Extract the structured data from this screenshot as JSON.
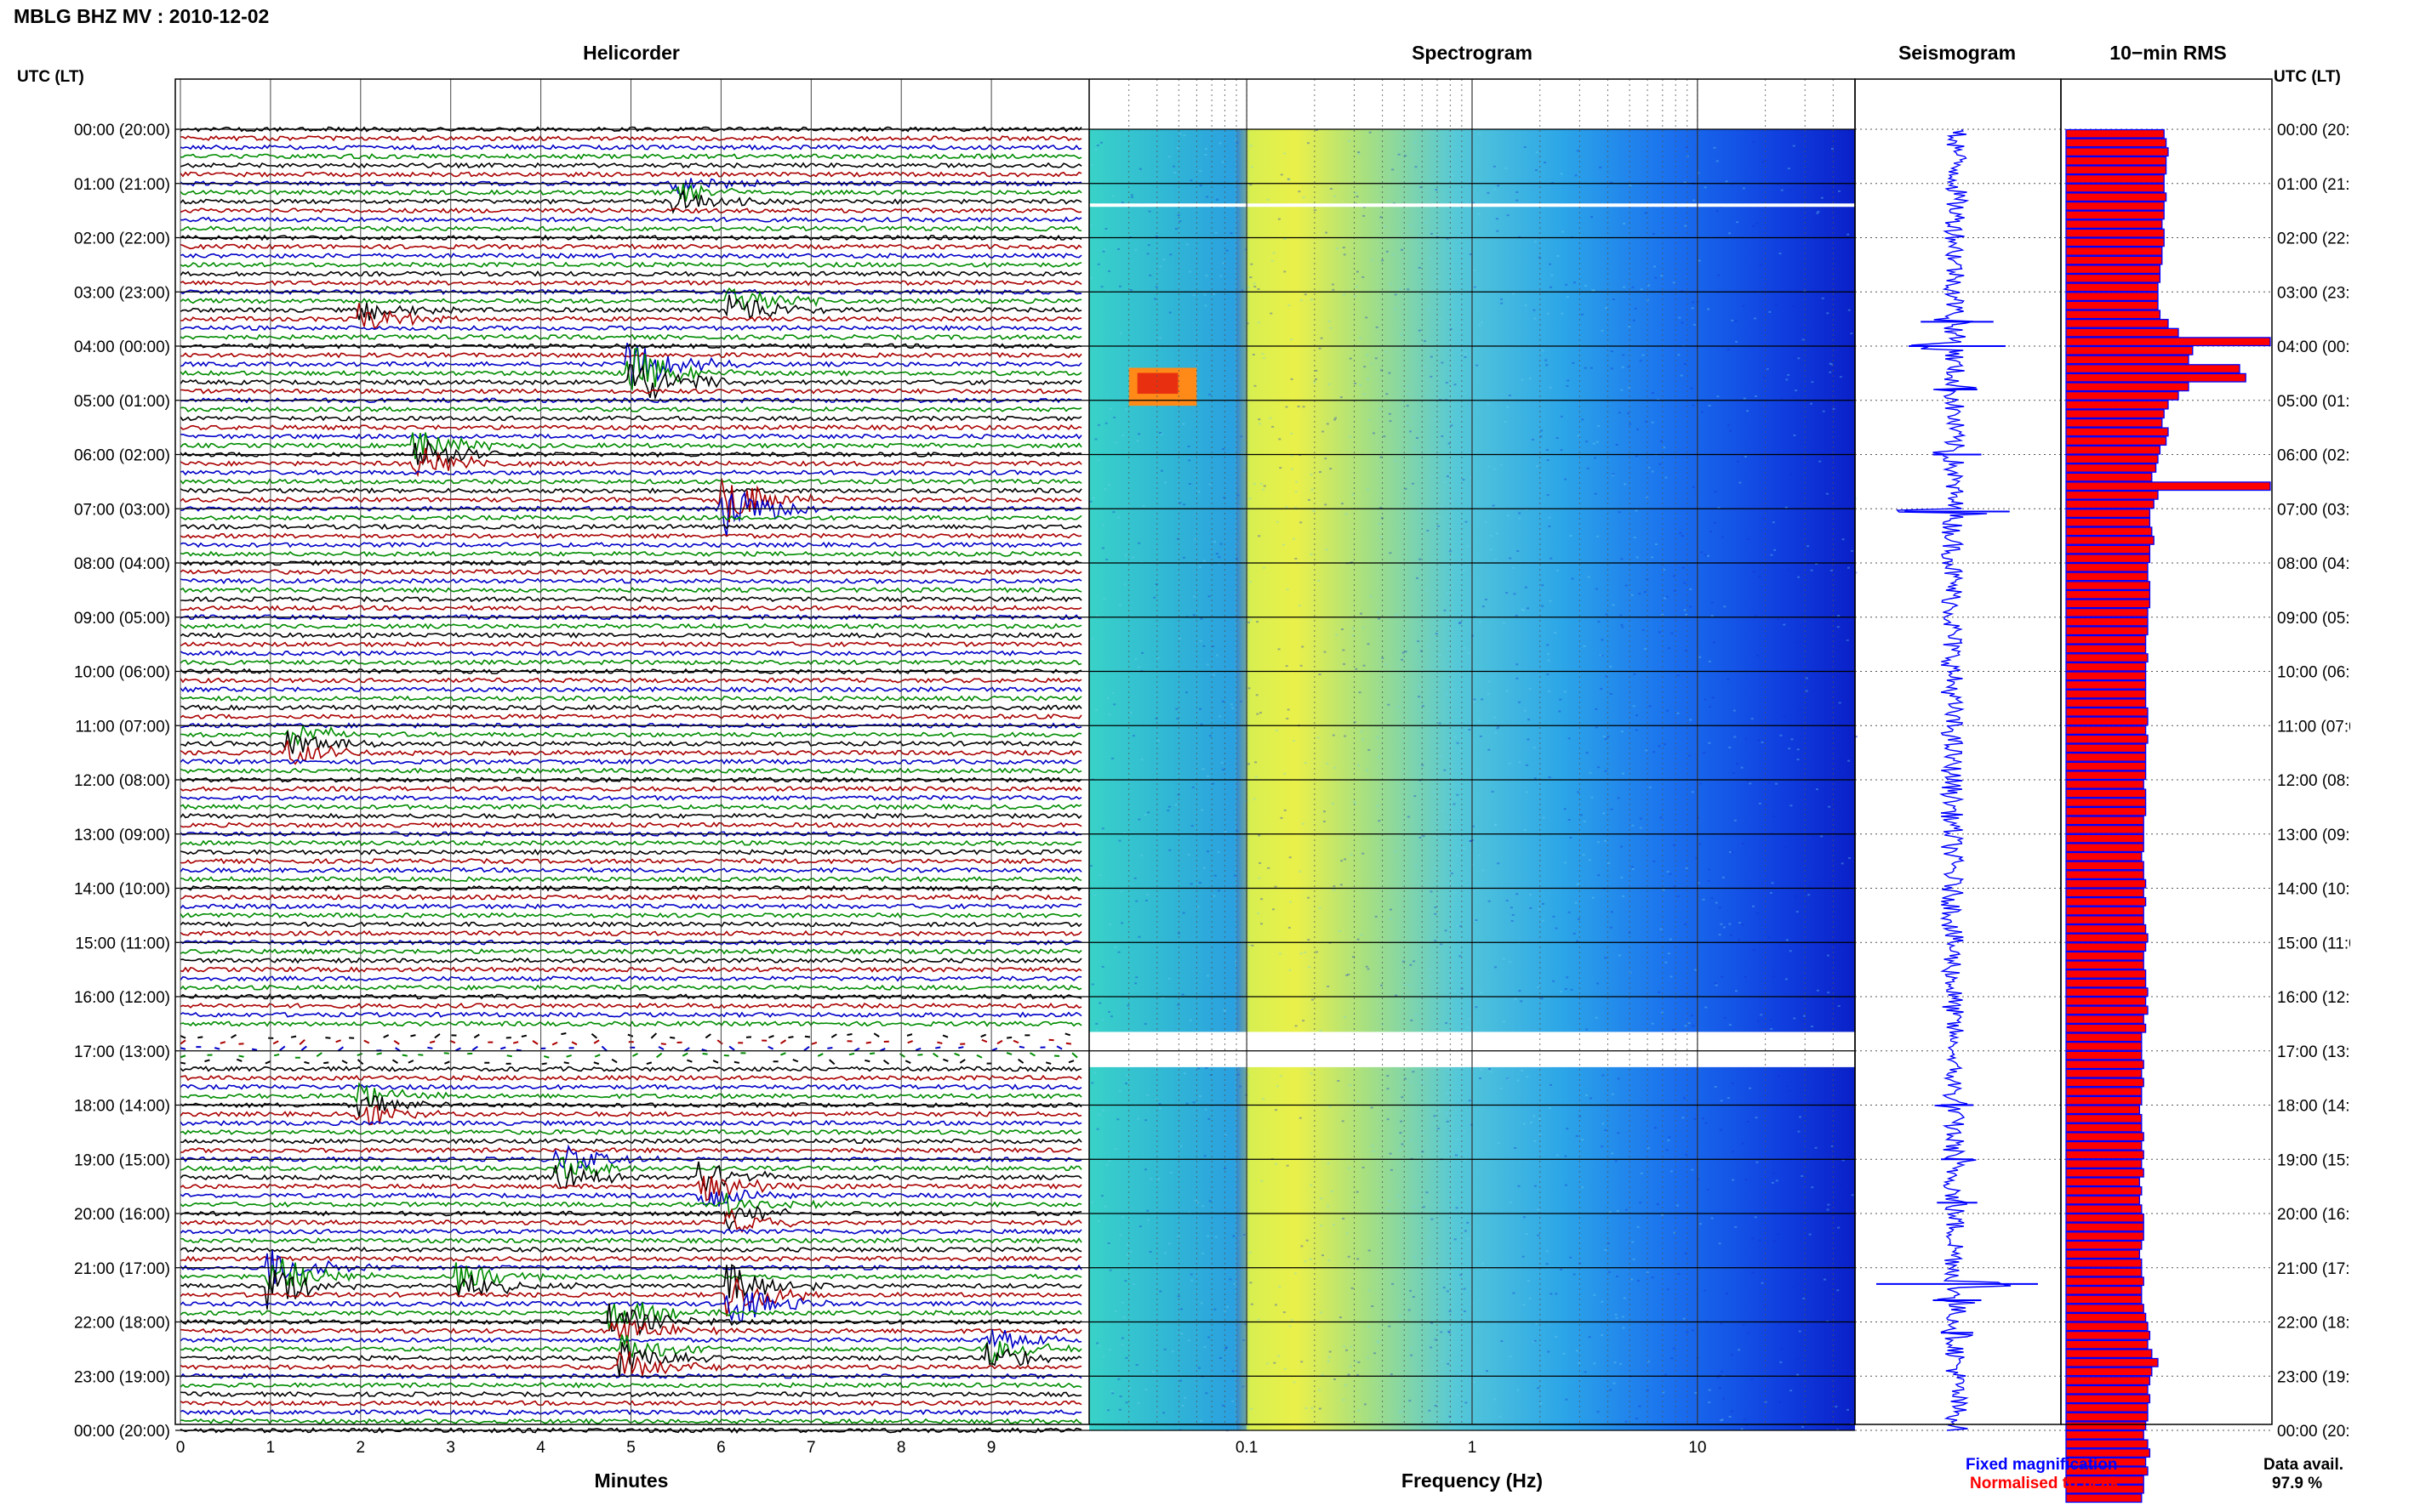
{
  "header": {
    "title": "MBLG BHZ MV : 2010-12-02",
    "utc_label_left": "UTC (LT)",
    "utc_label_right": "UTC (LT)"
  },
  "panels": {
    "helicorder": "Helicorder",
    "spectrogram": "Spectrogram",
    "seismogram": "Seismogram",
    "rms": "10−min RMS"
  },
  "time_labels": [
    "00:00 (20:00)",
    "01:00 (21:00)",
    "02:00 (22:00)",
    "03:00 (23:00)",
    "04:00 (00:00)",
    "05:00 (01:00)",
    "06:00 (02:00)",
    "07:00 (03:00)",
    "08:00 (04:00)",
    "09:00 (05:00)",
    "10:00 (06:00)",
    "11:00 (07:00)",
    "12:00 (08:00)",
    "13:00 (09:00)",
    "14:00 (10:00)",
    "15:00 (11:00)",
    "16:00 (12:00)",
    "17:00 (13:00)",
    "18:00 (14:00)",
    "19:00 (15:00)",
    "20:00 (16:00)",
    "21:00 (17:00)",
    "22:00 (18:00)",
    "23:00 (19:00)",
    "00:00 (20:00)"
  ],
  "footer": {
    "minutes_label": "Minutes",
    "frequency_label": "Frequency (Hz)",
    "fixed_magnification": "Fixed magnification",
    "normalised_to_peak": "Normalised to peak",
    "data_avail_label": "Data avail.",
    "data_avail_value": "97.9 %"
  },
  "colors": {
    "fixed_magnification": "#0000ff",
    "normalised_to_peak": "#ff0000",
    "trace_colors": [
      "#000000",
      "#aa0000",
      "#0000c8",
      "#008c00"
    ]
  },
  "chart_data": [
    {
      "type": "line",
      "name": "Helicorder",
      "xlabel": "Minutes",
      "xlim": [
        0,
        10
      ],
      "x_ticks": [
        0,
        1,
        2,
        3,
        4,
        5,
        6,
        7,
        8,
        9
      ],
      "y_range_utc_hours": [
        0,
        24
      ],
      "lines_per_hour": 6,
      "gap_utc_hours": [
        16.65,
        17.3
      ],
      "events": [
        {
          "utc_hour": 1.2,
          "minute": 5.5,
          "amp": 0.8
        },
        {
          "utc_hour": 3.3,
          "minute": 6.1,
          "amp": 1.4
        },
        {
          "utc_hour": 3.45,
          "minute": 2.0,
          "amp": 1.0
        },
        {
          "utc_hour": 4.5,
          "minute": 5.0,
          "amp": 2.0
        },
        {
          "utc_hour": 6.0,
          "minute": 2.6,
          "amp": 1.4
        },
        {
          "utc_hour": 6.95,
          "minute": 6.0,
          "amp": 2.2
        },
        {
          "utc_hour": 11.3,
          "minute": 1.2,
          "amp": 1.0
        },
        {
          "utc_hour": 18.0,
          "minute": 2.0,
          "amp": 1.0
        },
        {
          "utc_hour": 19.2,
          "minute": 4.2,
          "amp": 1.0
        },
        {
          "utc_hour": 19.5,
          "minute": 5.8,
          "amp": 1.2
        },
        {
          "utc_hour": 20.0,
          "minute": 6.1,
          "amp": 1.0
        },
        {
          "utc_hour": 21.2,
          "minute": 1.0,
          "amp": 1.6
        },
        {
          "utc_hour": 21.25,
          "minute": 3.1,
          "amp": 1.2
        },
        {
          "utc_hour": 21.5,
          "minute": 6.1,
          "amp": 1.6
        },
        {
          "utc_hour": 22.0,
          "minute": 4.8,
          "amp": 1.4
        },
        {
          "utc_hour": 22.5,
          "minute": 9.0,
          "amp": 1.0
        },
        {
          "utc_hour": 22.7,
          "minute": 4.9,
          "amp": 1.2
        }
      ]
    },
    {
      "type": "heatmap",
      "name": "Spectrogram",
      "xlabel": "Frequency (Hz)",
      "x_scale": "log",
      "xlim": [
        0.02,
        50
      ],
      "x_ticks": [
        0.1,
        1,
        10
      ],
      "x_tick_labels": [
        "0.1",
        "1",
        "10"
      ],
      "y_range_utc_hours": [
        0,
        24
      ],
      "gap_utc_hours": [
        16.65,
        17.3
      ],
      "white_line_utc_hour": 1.4,
      "hot_spot": {
        "utc_hours": [
          4.4,
          5.1
        ],
        "freq_hz": [
          0.03,
          0.06
        ]
      }
    },
    {
      "type": "line",
      "name": "Seismogram",
      "y_range_utc_hours": [
        0,
        24
      ],
      "spikes": [
        {
          "utc_hour": 3.55,
          "amp": 0.45
        },
        {
          "utc_hour": 4.0,
          "amp": 0.6
        },
        {
          "utc_hour": 4.8,
          "amp": 0.25
        },
        {
          "utc_hour": 6.0,
          "amp": 0.3
        },
        {
          "utc_hour": 7.05,
          "amp": 0.65
        },
        {
          "utc_hour": 18.0,
          "amp": 0.2
        },
        {
          "utc_hour": 19.0,
          "amp": 0.2
        },
        {
          "utc_hour": 19.8,
          "amp": 0.25
        },
        {
          "utc_hour": 21.3,
          "amp": 1.0
        },
        {
          "utc_hour": 21.6,
          "amp": 0.3
        },
        {
          "utc_hour": 22.2,
          "amp": 0.2
        }
      ]
    },
    {
      "type": "bar",
      "name": "10-min RMS",
      "y_range_utc_hours": [
        0,
        24
      ],
      "bin_minutes": 10,
      "xlim": [
        0,
        1
      ],
      "values": [
        0.48,
        0.49,
        0.5,
        0.49,
        0.49,
        0.48,
        0.48,
        0.49,
        0.48,
        0.48,
        0.47,
        0.48,
        0.48,
        0.47,
        0.47,
        0.46,
        0.46,
        0.45,
        0.45,
        0.45,
        0.46,
        0.5,
        0.55,
        1.0,
        0.62,
        0.6,
        0.85,
        0.88,
        0.6,
        0.55,
        0.5,
        0.48,
        0.47,
        0.5,
        0.49,
        0.46,
        0.45,
        0.44,
        0.42,
        1.0,
        0.45,
        0.43,
        0.41,
        0.41,
        0.42,
        0.43,
        0.41,
        0.41,
        0.4,
        0.4,
        0.41,
        0.41,
        0.41,
        0.4,
        0.4,
        0.4,
        0.39,
        0.39,
        0.4,
        0.39,
        0.39,
        0.39,
        0.39,
        0.39,
        0.4,
        0.4,
        0.39,
        0.4,
        0.39,
        0.39,
        0.39,
        0.39,
        0.38,
        0.39,
        0.39,
        0.39,
        0.38,
        0.38,
        0.38,
        0.38,
        0.37,
        0.38,
        0.38,
        0.39,
        0.38,
        0.39,
        0.38,
        0.38,
        0.39,
        0.4,
        0.39,
        0.38,
        0.38,
        0.39,
        0.39,
        0.4,
        0.39,
        0.4,
        0.38,
        0.39,
        0.37,
        0.37,
        0.37,
        0.38,
        0.37,
        0.38,
        0.37,
        0.37,
        0.36,
        0.37,
        0.37,
        0.38,
        0.37,
        0.38,
        0.37,
        0.38,
        0.36,
        0.37,
        0.36,
        0.37,
        0.38,
        0.38,
        0.38,
        0.37,
        0.36,
        0.37,
        0.37,
        0.38,
        0.37,
        0.37,
        0.38,
        0.39,
        0.4,
        0.41,
        0.4,
        0.42,
        0.45,
        0.42,
        0.41,
        0.4,
        0.41,
        0.4,
        0.4,
        0.39,
        0.38,
        0.4,
        0.41,
        0.39,
        0.4,
        0.38,
        0.38,
        0.37
      ]
    }
  ]
}
